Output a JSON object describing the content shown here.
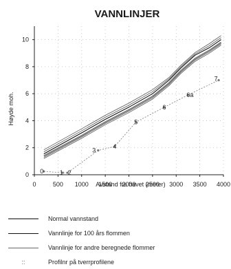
{
  "chart_data": {
    "type": "line",
    "title": "VANNLINJER",
    "xlabel": "Avstand fra havet (meter)",
    "ylabel": "Høyde moh.",
    "xlim": [
      0,
      4000
    ],
    "ylim": [
      0,
      11
    ],
    "xticks": [
      "0",
      "500",
      "1000",
      "1500",
      "2000",
      "2500",
      "3000",
      "3500",
      "4000"
    ],
    "yticks": [
      "0",
      "2",
      "4",
      "6",
      "8",
      "10"
    ],
    "grid": "dotted",
    "series": [
      {
        "name": "Normal vannstand",
        "color": "#7a7a7a",
        "x": [
          200,
          1000,
          1500,
          2000,
          2500,
          2850,
          3100,
          3400,
          3700,
          3950
        ],
        "y": [
          1.4,
          2.9,
          3.9,
          4.8,
          5.8,
          6.8,
          7.7,
          8.6,
          9.2,
          9.8
        ]
      },
      {
        "name": "Vannlinje for 100 års flommen",
        "color": "#111111",
        "x": [
          200,
          1000,
          1500,
          2000,
          2500,
          2850,
          3100,
          3400,
          3700,
          3950
        ],
        "y": [
          1.55,
          3.1,
          4.1,
          5.0,
          6.0,
          7.0,
          7.9,
          8.85,
          9.4,
          10.0
        ]
      },
      {
        "name": "Vannlinje for andre beregnede flommer",
        "color": "#555555",
        "lines": [
          {
            "x": [
              200,
              1000,
              1500,
              2000,
              2500,
              2850,
              3100,
              3400,
              3700,
              3950
            ],
            "y": [
              1.2,
              2.7,
              3.7,
              4.6,
              5.6,
              6.6,
              7.5,
              8.4,
              9.0,
              9.6
            ]
          },
          {
            "x": [
              200,
              1000,
              1500,
              2000,
              2500,
              2850,
              3100,
              3400,
              3700,
              3950
            ],
            "y": [
              1.3,
              2.8,
              3.8,
              4.7,
              5.7,
              6.7,
              7.6,
              8.5,
              9.1,
              9.7
            ]
          },
          {
            "x": [
              200,
              1000,
              1500,
              2000,
              2500,
              2850,
              3100,
              3400,
              3700,
              3950
            ],
            "y": [
              1.7,
              3.25,
              4.25,
              5.15,
              6.15,
              7.1,
              8.0,
              8.95,
              9.55,
              10.15
            ]
          },
          {
            "x": [
              200,
              1000,
              1500,
              2000,
              2500,
              2850,
              3100,
              3400,
              3700,
              3950
            ],
            "y": [
              1.85,
              3.4,
              4.4,
              5.3,
              6.3,
              7.2,
              8.1,
              9.05,
              9.7,
              10.3
            ]
          }
        ]
      }
    ],
    "profiles": {
      "name": "Profilnr på tverrprofilene",
      "color": "#777777",
      "points": [
        {
          "label": "0",
          "x": 200,
          "y": 0.25
        },
        {
          "label": "1",
          "x": 600,
          "y": 0.15
        },
        {
          "label": "2",
          "x": 700,
          "y": 0.15
        },
        {
          "label": "3",
          "x": 1350,
          "y": 1.8
        },
        {
          "label": "4",
          "x": 1700,
          "y": 2.1
        },
        {
          "label": "5",
          "x": 2150,
          "y": 3.9
        },
        {
          "label": "6",
          "x": 2750,
          "y": 5.0
        },
        {
          "label": "6a",
          "x": 3250,
          "y": 5.9
        },
        {
          "label": "7",
          "x": 3900,
          "y": 7.0
        }
      ]
    }
  },
  "legend": [
    {
      "key": "normal",
      "label": "Normal vannstand"
    },
    {
      "key": "f100",
      "label": "Vannlinje for 100 års flommen"
    },
    {
      "key": "other",
      "label": "Vannlinje for andre beregnede flommer"
    },
    {
      "key": "prof",
      "label": "Profilnr på tverrprofilene",
      "symbol": "::"
    }
  ]
}
